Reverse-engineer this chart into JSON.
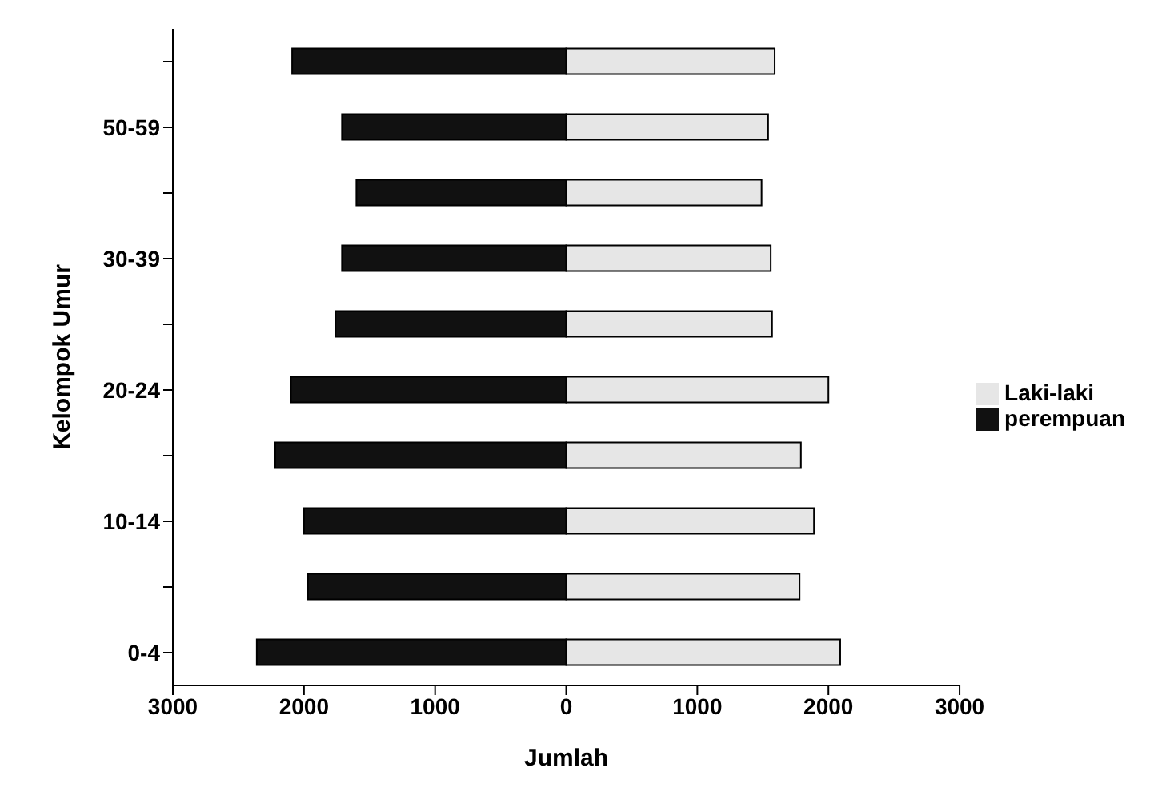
{
  "chart_data": {
    "type": "bar",
    "orientation": "horizontal",
    "stacked": true,
    "xlabel": "Jumlah",
    "ylabel": "Kelompok Umur",
    "categories": [
      null,
      "50-59",
      null,
      "30-39",
      null,
      "20-24",
      null,
      "10-14",
      null,
      "0-4"
    ],
    "series": [
      {
        "name": "Laki-laki",
        "color": "#e6e6e6",
        "values": [
          1590,
          1540,
          1490,
          1560,
          1570,
          2000,
          1790,
          1890,
          1780,
          2090
        ]
      },
      {
        "name": "perempuan",
        "color": "#111111",
        "values": [
          -2090,
          -1710,
          -1600,
          -1710,
          -1760,
          -2100,
          -2220,
          -2000,
          -1970,
          -2360
        ]
      }
    ],
    "xlim": [
      -3000,
      3000
    ],
    "xticks": [
      {
        "value": -3000,
        "label": "3000"
      },
      {
        "value": -2000,
        "label": "2000"
      },
      {
        "value": -1000,
        "label": "1000"
      },
      0,
      1000,
      2000,
      3000
    ],
    "grid": false,
    "legend": "right"
  }
}
